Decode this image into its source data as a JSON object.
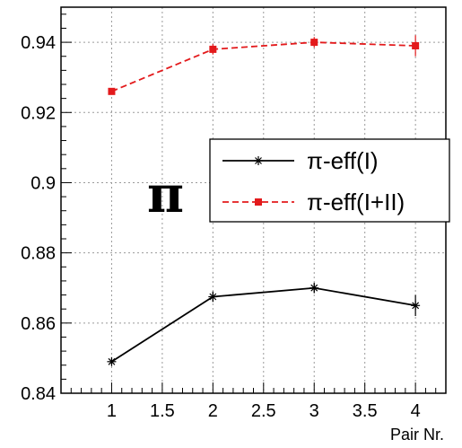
{
  "chart_data": {
    "type": "line",
    "x": [
      1,
      2,
      3,
      4
    ],
    "series": [
      {
        "name": "π-eff(I)",
        "values": [
          0.849,
          0.8675,
          0.87,
          0.865
        ],
        "errors": [
          0.0008,
          0.0015,
          0.0015,
          0.003
        ],
        "color": "#000000",
        "marker": "asterisk",
        "line": "solid"
      },
      {
        "name": "π-eff(I+II)",
        "values": [
          0.926,
          0.938,
          0.94,
          0.939
        ],
        "errors": [
          0.0008,
          0.0015,
          0.0015,
          0.003
        ],
        "color": "#e31a1c",
        "marker": "square",
        "line": "dashed"
      }
    ],
    "xlim": [
      0.5,
      4.3
    ],
    "ylim": [
      0.84,
      0.95
    ],
    "xticks": [
      1,
      1.5,
      2,
      2.5,
      3,
      3.5,
      4
    ],
    "xtick_labels": [
      "1",
      "1.5",
      "2",
      "2.5",
      "3",
      "3.5",
      "4"
    ],
    "yticks": [
      0.84,
      0.86,
      0.88,
      0.9,
      0.92,
      0.94
    ],
    "ytick_labels": [
      "0.84",
      "0.86",
      "0.88",
      "0.9",
      "0.92",
      "0.94"
    ],
    "xlabel": "Pair Nr.",
    "ylabel": "",
    "grid": true,
    "legend_placement": "center-right",
    "annotation": "π"
  }
}
